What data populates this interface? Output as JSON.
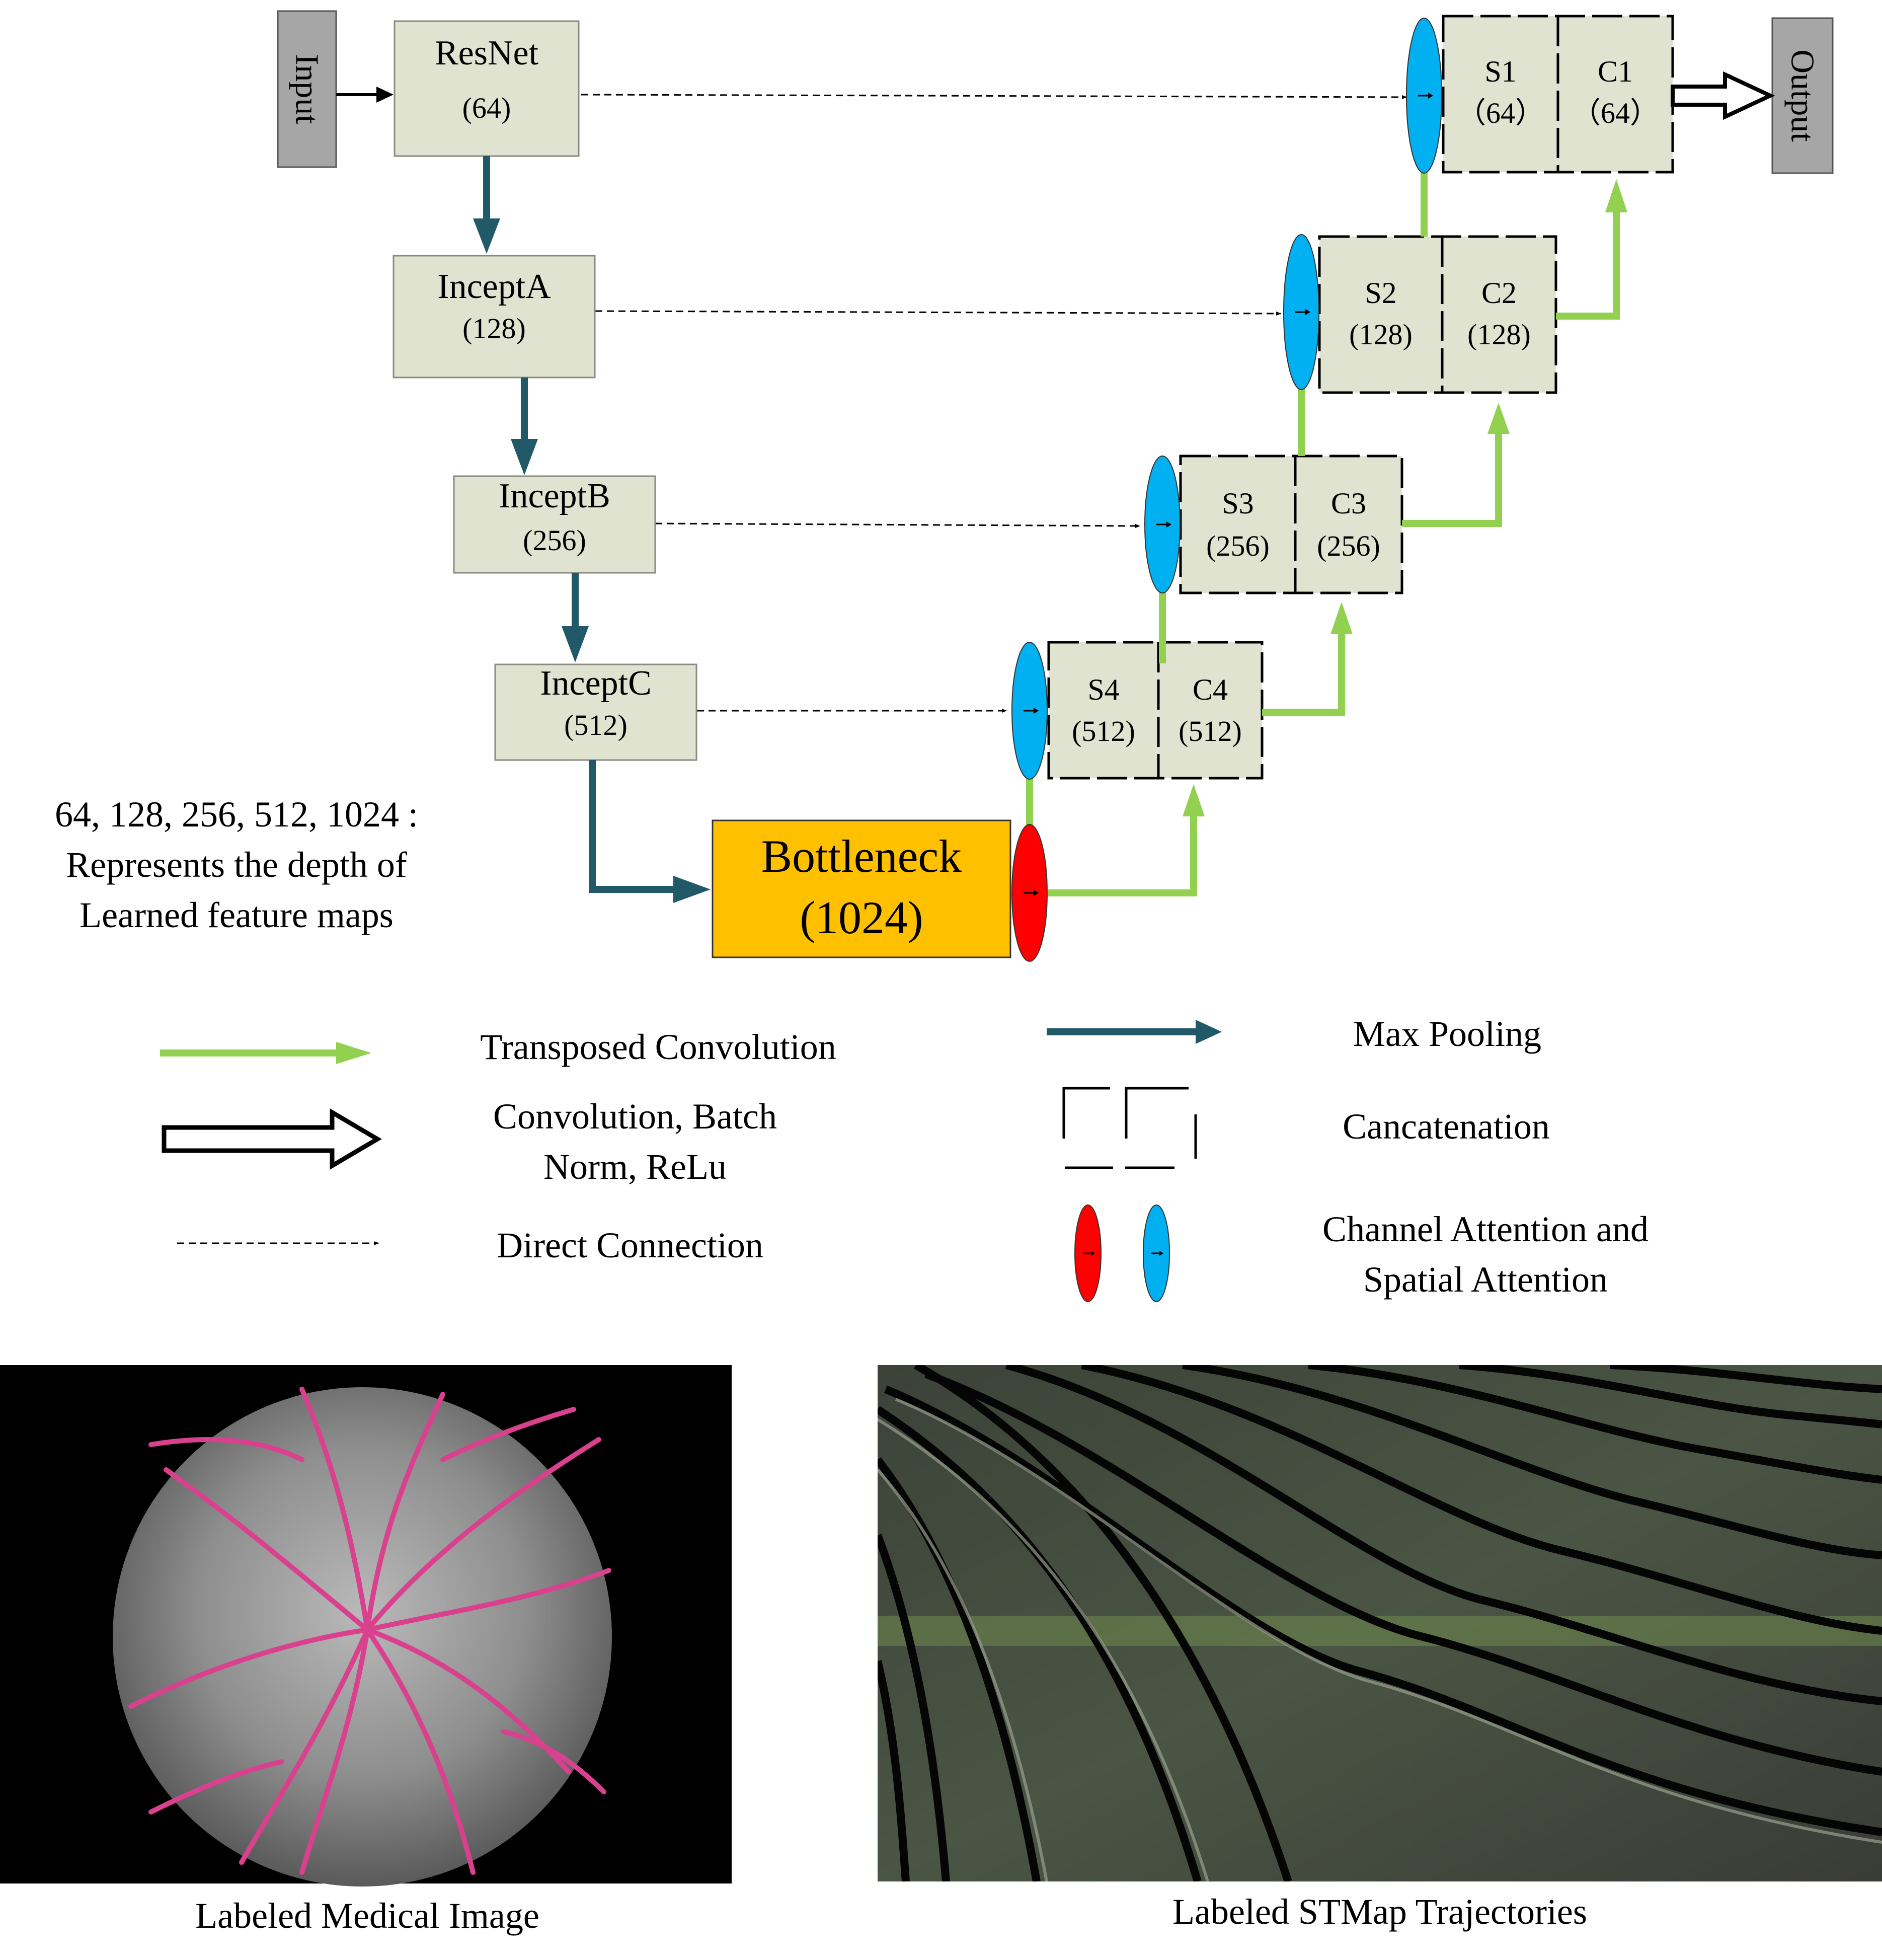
{
  "nodes": {
    "input": "Input",
    "output": "Output",
    "resnet": {
      "name": "ResNet",
      "depth": "(64)"
    },
    "incepta": {
      "name": "InceptA",
      "depth": "(128)"
    },
    "inceptb": {
      "name": "InceptB",
      "depth": "(256)"
    },
    "inceptc": {
      "name": "InceptC",
      "depth": "(512)"
    },
    "bottleneck": {
      "name": "Bottleneck",
      "depth": "(1024)"
    },
    "s1": {
      "name": "S1",
      "depth": "（64）"
    },
    "c1": {
      "name": "C1",
      "depth": "（64）"
    },
    "s2": {
      "name": "S2",
      "depth": "(128)"
    },
    "c2": {
      "name": "C2",
      "depth": "(128)"
    },
    "s3": {
      "name": "S3",
      "depth": "(256)"
    },
    "c3": {
      "name": "C3",
      "depth": "(256)"
    },
    "s4": {
      "name": "S4",
      "depth": "(512)"
    },
    "c4": {
      "name": "C4",
      "depth": "(512)"
    }
  },
  "note": {
    "line1": "64, 128, 256, 512, 1024 :",
    "line2": "Represents the depth of",
    "line3": "Learned feature maps"
  },
  "legend": {
    "transposed_conv": "Transposed Convolution",
    "conv_bn_relu_line1": "Convolution, Batch",
    "conv_bn_relu_line2": "Norm, ReLu",
    "direct_connection": "Direct Connection",
    "max_pooling": "Max Pooling",
    "concatenation": "Cancatenation",
    "attention_line1": "Channel Attention and",
    "attention_line2": "Spatial Attention"
  },
  "captions": {
    "medical": "Labeled Medical Image",
    "stmap": "Labeled STMap Trajectories"
  },
  "colors": {
    "box_fill": "#dfe3d0",
    "bottleneck_fill": "#ffc000",
    "io_fill": "#a6a6a6",
    "green": "#92d050",
    "teal": "#215968",
    "blue": "#00b0f0",
    "red": "#ff0000",
    "vessel": "#d9418e"
  }
}
